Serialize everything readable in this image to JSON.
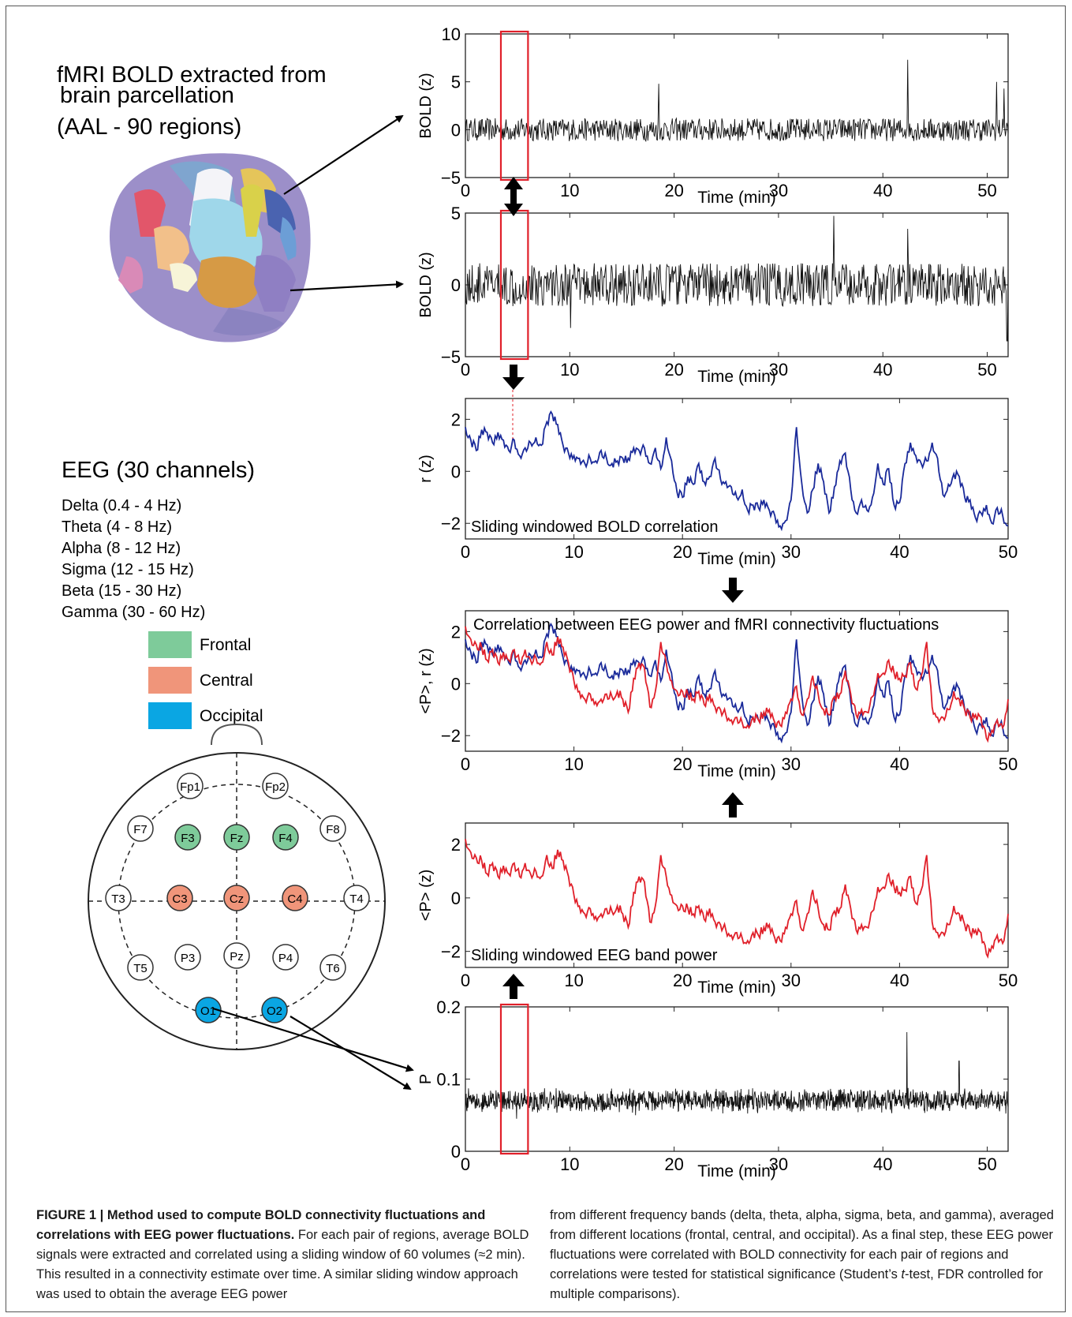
{
  "fmri_label": {
    "line1": "fMRI BOLD extracted from",
    "line2": "brain parcellation",
    "line3": "(AAL - 90 regions)"
  },
  "eeg_label": {
    "title": "EEG (30 channels)",
    "bands": [
      "Delta (0.4 - 4 Hz)",
      "Theta (4 - 8 Hz)",
      "Alpha (8 - 12 Hz)",
      "Sigma (12 - 15 Hz)",
      "Beta (15 - 30 Hz)",
      "Gamma (30 - 60 Hz)"
    ]
  },
  "legend": [
    {
      "label": "Frontal",
      "color": "#7ecb9a"
    },
    {
      "label": "Central",
      "color": "#f0957a"
    },
    {
      "label": "Occipital",
      "color": "#0aa6e3"
    }
  ],
  "electrodes": {
    "labels": [
      "Fp1",
      "Fp2",
      "F7",
      "F3",
      "Fz",
      "F4",
      "F8",
      "T3",
      "C3",
      "Cz",
      "C4",
      "T4",
      "T5",
      "P3",
      "Pz",
      "P4",
      "T6",
      "O1",
      "O2"
    ],
    "groups": [
      "none",
      "none",
      "none",
      "frontal",
      "frontal",
      "frontal",
      "none",
      "none",
      "central",
      "central",
      "central",
      "none",
      "none",
      "none",
      "none",
      "none",
      "none",
      "occipital",
      "occipital"
    ]
  },
  "colors": {
    "frontal": "#7ecb9a",
    "central": "#f0957a",
    "occipital": "#0aa6e3",
    "bold_corr": "#1a2a9a",
    "eeg_power": "#e0202a",
    "window": "#e0202a"
  },
  "chart_data": [
    {
      "id": "bold1",
      "type": "line",
      "xlabel": "Time (min)",
      "ylabel": "BOLD (z)",
      "xlim": [
        0,
        52
      ],
      "ylim": [
        -5,
        10
      ],
      "xticks": [
        0,
        10,
        20,
        30,
        40,
        50
      ],
      "yticks": [
        -5,
        0,
        5,
        10
      ],
      "series": [
        {
          "color": "#000000",
          "values": [],
          "note_noise": [
            0,
            1.1,
            52,
            5
          ]
        }
      ],
      "spikes": [
        [
          18.5,
          4.8
        ],
        [
          42.4,
          7.3
        ],
        [
          50.9,
          5.0
        ],
        [
          51.6,
          4.3
        ]
      ]
    },
    {
      "id": "bold2",
      "type": "line",
      "xlabel": "Time (min)",
      "ylabel": "BOLD (z)",
      "xlim": [
        0,
        52
      ],
      "ylim": [
        -5,
        5
      ],
      "xticks": [
        0,
        10,
        20,
        30,
        40,
        50
      ],
      "yticks": [
        -5,
        0,
        5
      ],
      "series": [
        {
          "color": "#000000",
          "values": []
        }
      ],
      "spikes": [
        [
          35.3,
          4.8
        ],
        [
          42.4,
          3.9
        ],
        [
          51.9,
          -3.9
        ],
        [
          10.1,
          -3.0
        ]
      ]
    },
    {
      "id": "corr",
      "type": "line",
      "xlabel": "Time (min)",
      "ylabel": "r (z)",
      "xlim": [
        0,
        50
      ],
      "ylim": [
        -2.6,
        2.8
      ],
      "xticks": [
        0,
        10,
        20,
        30,
        40,
        50
      ],
      "yticks": [
        -2,
        0,
        2
      ],
      "annotation": "Sliding windowed BOLD  correlation",
      "series": [
        {
          "color": "#1a2a9a",
          "x": [
            0,
            0.5,
            1,
            1.5,
            2,
            2.5,
            3,
            3.5,
            4,
            4.5,
            5,
            5.5,
            6,
            6.5,
            7,
            7.5,
            8,
            8.5,
            9,
            9.5,
            10,
            10.5,
            11,
            11.5,
            12,
            12.5,
            13,
            13.5,
            14,
            14.5,
            15,
            15.5,
            16,
            16.5,
            17,
            17.5,
            18,
            18.5,
            19,
            19.5,
            20,
            20.5,
            21,
            21.5,
            22,
            22.5,
            23,
            23.5,
            24,
            24.5,
            25,
            25.5,
            26,
            26.5,
            27,
            27.5,
            28,
            28.5,
            29,
            29.5,
            30,
            30.5,
            31,
            31.5,
            32,
            32.5,
            33,
            33.5,
            34,
            34.5,
            35,
            35.5,
            36,
            36.5,
            37,
            37.5,
            38,
            38.5,
            39,
            39.5,
            40,
            40.5,
            41,
            41.5,
            42,
            42.5,
            43,
            43.5,
            44,
            44.5,
            45,
            45.5,
            46,
            46.5,
            47,
            47.5,
            48,
            48.5,
            49,
            49.5,
            50
          ],
          "values": [
            1.7,
            1.2,
            0.8,
            1.6,
            1.5,
            1.1,
            1.5,
            1.2,
            0.8,
            1.2,
            0.6,
            0.9,
            1.1,
            1.3,
            1.0,
            1.9,
            2.2,
            1.8,
            1.0,
            0.7,
            0.6,
            0.5,
            0.3,
            0.5,
            0.4,
            0.8,
            0.5,
            0.3,
            0.4,
            0.5,
            0.5,
            0.9,
            0.8,
            0.9,
            0.3,
            0.9,
            0.1,
            1.3,
            0.4,
            -0.8,
            -1.0,
            -0.2,
            -0.5,
            0.3,
            -0.4,
            -0.2,
            0.5,
            -0.3,
            -0.4,
            -0.6,
            -1.0,
            -0.7,
            -1.5,
            -1.3,
            -1.4,
            -1.1,
            -1.5,
            -1.7,
            -2.1,
            -1.9,
            -1.1,
            1.7,
            -0.5,
            -1.6,
            -0.7,
            0.3,
            -0.4,
            -1.6,
            -0.6,
            0.4,
            0.7,
            -0.7,
            -1.6,
            -1.1,
            -1.5,
            -1.0,
            0.3,
            -0.5,
            0.1,
            -1.3,
            -1.2,
            0.3,
            1.1,
            0.6,
            0.3,
            0.4,
            1.1,
            0.5,
            -0.9,
            -0.5,
            -0.1,
            -0.2,
            -1.0,
            -1.1,
            -1.8,
            -1.6,
            -1.3,
            -2.0,
            -1.4,
            -1.7,
            -2.1
          ]
        }
      ]
    },
    {
      "id": "combined",
      "type": "line",
      "xlabel": "Time (min)",
      "ylabel": "<P>, r  (z)",
      "xlim": [
        0,
        50
      ],
      "ylim": [
        -2.6,
        2.8
      ],
      "xticks": [
        0,
        10,
        20,
        30,
        40,
        50
      ],
      "yticks": [
        -2,
        0,
        2
      ],
      "annotation": "Correlation between EEG power and fMRI connectivity fluctuations",
      "series": [
        {
          "color": "#1a2a9a",
          "ref": "corr"
        },
        {
          "color": "#e0202a",
          "ref": "power"
        }
      ]
    },
    {
      "id": "power",
      "type": "line",
      "xlabel": "Time (min)",
      "ylabel": "<P> (z)",
      "xlim": [
        0,
        50
      ],
      "ylim": [
        -2.6,
        2.8
      ],
      "xticks": [
        0,
        10,
        20,
        30,
        40,
        50
      ],
      "yticks": [
        -2,
        0,
        2
      ],
      "annotation": "Sliding windowed EEG band power",
      "series": [
        {
          "color": "#e0202a",
          "x": [
            0,
            0.5,
            1,
            1.5,
            2,
            2.5,
            3,
            3.5,
            4,
            4.5,
            5,
            5.5,
            6,
            6.5,
            7,
            7.5,
            8,
            8.5,
            9,
            9.5,
            10,
            10.5,
            11,
            11.5,
            12,
            12.5,
            13,
            13.5,
            14,
            14.5,
            15,
            15.5,
            16,
            16.5,
            17,
            17.5,
            18,
            18.5,
            19,
            19.5,
            20,
            20.5,
            21,
            21.5,
            22,
            22.5,
            23,
            23.5,
            24,
            24.5,
            25,
            25.5,
            26,
            26.5,
            27,
            27.5,
            28,
            28.5,
            29,
            29.5,
            30,
            30.5,
            31,
            31.5,
            32,
            32.5,
            33,
            33.5,
            34,
            34.5,
            35,
            35.5,
            36,
            36.5,
            37,
            37.5,
            38,
            38.5,
            39,
            39.5,
            40,
            40.5,
            41,
            41.5,
            42,
            42.5,
            43,
            43.5,
            44,
            44.5,
            45,
            45.5,
            46,
            46.5,
            47,
            47.5,
            48,
            48.5,
            49,
            49.5,
            50
          ],
          "values": [
            2.2,
            1.7,
            1.5,
            1.4,
            0.9,
            1.3,
            0.8,
            1.2,
            0.9,
            1.3,
            0.8,
            1.3,
            0.9,
            1.0,
            0.8,
            1.6,
            1.1,
            1.8,
            1.4,
            0.8,
            0.1,
            -0.3,
            -0.6,
            -0.4,
            -0.7,
            -0.6,
            -0.4,
            -0.5,
            -0.3,
            -0.6,
            -1.1,
            0.2,
            0.8,
            0.6,
            -0.9,
            -0.3,
            1.6,
            0.8,
            0.1,
            -0.3,
            -0.3,
            -0.4,
            -0.6,
            -0.3,
            -0.8,
            -0.4,
            -0.9,
            -1.0,
            -1.2,
            -1.4,
            -1.3,
            -1.5,
            -1.6,
            -1.3,
            -1.4,
            -1.1,
            -1.0,
            -1.5,
            -1.6,
            -1.1,
            -0.6,
            -0.1,
            -1.2,
            -0.6,
            0.3,
            -0.4,
            -1.0,
            -1.2,
            -0.5,
            -0.4,
            0.5,
            -0.4,
            -1.2,
            -1.0,
            -1.1,
            -0.5,
            0.4,
            0.4,
            0.9,
            0.4,
            0.2,
            0.3,
            0.8,
            -0.2,
            0.3,
            1.6,
            -0.9,
            -1.3,
            -1.3,
            -1.0,
            -0.3,
            -0.6,
            -1.0,
            -1.3,
            -1.2,
            -1.3,
            -2.1,
            -1.8,
            -1.4,
            -1.7,
            -0.6
          ]
        }
      ]
    },
    {
      "id": "eeg",
      "type": "line",
      "xlabel": "Time (min)",
      "ylabel": "P",
      "xlim": [
        0,
        52
      ],
      "ylim": [
        0,
        0.2
      ],
      "xticks": [
        0,
        10,
        20,
        30,
        40,
        50
      ],
      "yticks": [
        0,
        0.1,
        0.2
      ],
      "series": [
        {
          "color": "#000000",
          "values": []
        }
      ],
      "spikes": [
        [
          42.3,
          0.165
        ],
        [
          47.3,
          0.125
        ],
        [
          4.9,
          0.045
        ],
        [
          16.3,
          0.05
        ]
      ]
    }
  ],
  "caption": {
    "title": "FIGURE 1 | Method used to compute BOLD connectivity fluctuations and correlations with EEG power fluctuations.",
    "left_body": " For each pair of regions, average BOLD signals were extracted and correlated using a sliding window of 60 volumes (≈2 min). This resulted in a connectivity estimate over time. A similar sliding window approach was used to obtain the average EEG power",
    "right_body_1": "from different frequency bands (delta, theta, alpha, sigma, beta, and gamma), averaged from different locations (frontal, central, and occipital). As a final step, these EEG power fluctuations were correlated with BOLD connectivity for each pair of regions and correlations were tested for statistical significance (Student’s ",
    "right_italic": "t",
    "right_body_2": "-test, FDR controlled for multiple comparisons)."
  }
}
